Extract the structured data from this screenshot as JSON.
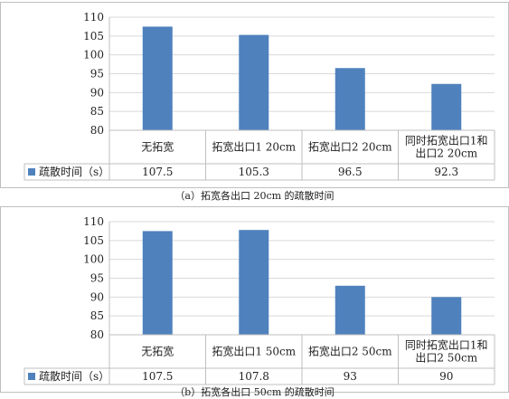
{
  "charts": [
    {
      "chart_data": {
        "type": "bar",
        "categories": [
          "无拓宽",
          "拓宽出口1 20cm",
          "拓宽出口2 20cm",
          [
            "同时拓宽出口1和",
            "出口2 20cm"
          ]
        ],
        "series": [
          {
            "name": "疏散时间（s）",
            "values": [
              107.5,
              105.3,
              96.5,
              92.3
            ]
          }
        ],
        "table_values": [
          "107.5",
          "105.3",
          "96.5",
          "92.3"
        ],
        "ylim": [
          80,
          110
        ],
        "yticks": [
          80,
          85,
          90,
          95,
          100,
          105,
          110
        ],
        "ytick_labels": [
          "80",
          "85",
          "90",
          "95",
          "100",
          "105",
          "110"
        ],
        "grid": true,
        "data_table": true
      },
      "caption": "（a）拓宽各出口 20cm 的疏散时间"
    },
    {
      "chart_data": {
        "type": "bar",
        "categories": [
          "无拓宽",
          "拓宽出口1 50cm",
          "拓宽出口2 50cm",
          [
            "同时拓宽出口1和",
            "出口2 50cm"
          ]
        ],
        "series": [
          {
            "name": "疏散时间（s）",
            "values": [
              107.5,
              107.8,
              93,
              90
            ]
          }
        ],
        "table_values": [
          "107.5",
          "107.8",
          "93",
          "90"
        ],
        "ylim": [
          80,
          110
        ],
        "yticks": [
          80,
          85,
          90,
          95,
          100,
          105,
          110
        ],
        "ytick_labels": [
          "80",
          "85",
          "90",
          "95",
          "100",
          "105",
          "110"
        ],
        "grid": true,
        "data_table": true
      },
      "caption": "（b）拓宽各出口 50cm 的疏散时间"
    }
  ],
  "colors": {
    "bar": "#4f81bd",
    "grid": "#d9d9d9",
    "axis": "#bfbfbf",
    "text": "#222222"
  }
}
